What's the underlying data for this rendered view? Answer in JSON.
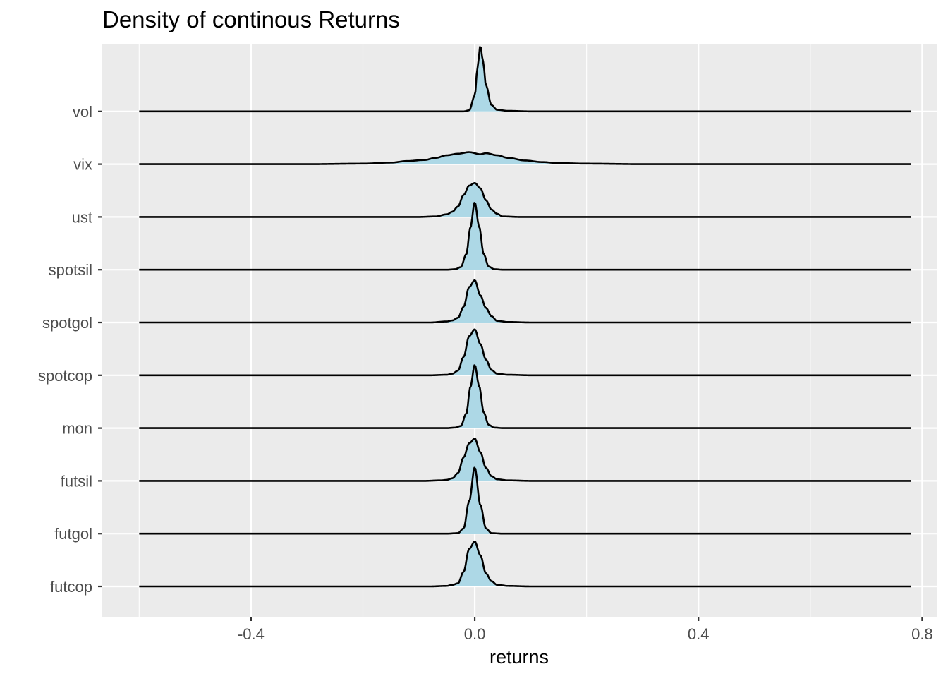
{
  "chart_data": {
    "type": "ridgeline-density",
    "title": "Density of continous Returns",
    "xlabel": "returns",
    "ylabel": "",
    "xlim": [
      -0.666,
      0.826
    ],
    "x_ticks": [
      -0.4,
      0.0,
      0.4,
      0.8
    ],
    "x_tick_labels": [
      "-0.4",
      "0.0",
      "0.4",
      "0.8"
    ],
    "x_range_of_curves": [
      -0.6,
      0.78
    ],
    "grid": true,
    "legend": "none",
    "fill_color": "#add8e6",
    "line_color": "#000000",
    "panel_color": "#ebebeb",
    "grid_color": "#ffffff",
    "categories": [
      "futcop",
      "futgol",
      "futsil",
      "mon",
      "spotcop",
      "spotgol",
      "spotsil",
      "ust",
      "vix",
      "vol"
    ],
    "series": [
      {
        "name": "futcop",
        "peak_x": 0.0,
        "peak_height": 0.86,
        "shape": [
          [
            -0.08,
            0.0
          ],
          [
            -0.05,
            0.01
          ],
          [
            -0.04,
            0.03
          ],
          [
            -0.03,
            0.06
          ],
          [
            -0.02,
            0.28
          ],
          [
            -0.01,
            0.72
          ],
          [
            0.0,
            0.86
          ],
          [
            0.01,
            0.6
          ],
          [
            0.02,
            0.25
          ],
          [
            0.03,
            0.1
          ],
          [
            0.04,
            0.03
          ],
          [
            0.06,
            0.01
          ],
          [
            0.1,
            0.0
          ]
        ]
      },
      {
        "name": "futgol",
        "peak_x": 0.0,
        "peak_height": 1.27,
        "shape": [
          [
            -0.05,
            0.0
          ],
          [
            -0.03,
            0.01
          ],
          [
            -0.02,
            0.1
          ],
          [
            -0.01,
            0.62
          ],
          [
            0.0,
            1.27
          ],
          [
            0.01,
            0.55
          ],
          [
            0.02,
            0.1
          ],
          [
            0.03,
            0.01
          ],
          [
            0.05,
            0.0
          ]
        ]
      },
      {
        "name": "futsil",
        "peak_x": 0.0,
        "peak_height": 0.81,
        "shape": [
          [
            -0.09,
            0.0
          ],
          [
            -0.06,
            0.01
          ],
          [
            -0.05,
            0.02
          ],
          [
            -0.04,
            0.05
          ],
          [
            -0.03,
            0.15
          ],
          [
            -0.02,
            0.45
          ],
          [
            -0.01,
            0.72
          ],
          [
            0.0,
            0.81
          ],
          [
            0.01,
            0.55
          ],
          [
            0.02,
            0.25
          ],
          [
            0.03,
            0.09
          ],
          [
            0.04,
            0.03
          ],
          [
            0.06,
            0.01
          ],
          [
            0.1,
            0.0
          ]
        ]
      },
      {
        "name": "mon",
        "peak_x": 0.0,
        "peak_height": 1.21,
        "shape": [
          [
            -0.05,
            0.0
          ],
          [
            -0.035,
            0.01
          ],
          [
            -0.025,
            0.04
          ],
          [
            -0.015,
            0.28
          ],
          [
            -0.008,
            0.78
          ],
          [
            0.0,
            1.21
          ],
          [
            0.008,
            0.8
          ],
          [
            0.016,
            0.3
          ],
          [
            0.025,
            0.06
          ],
          [
            0.035,
            0.01
          ],
          [
            0.05,
            0.0
          ]
        ]
      },
      {
        "name": "spotcop",
        "peak_x": 0.0,
        "peak_height": 0.88,
        "shape": [
          [
            -0.08,
            0.0
          ],
          [
            -0.05,
            0.01
          ],
          [
            -0.04,
            0.03
          ],
          [
            -0.03,
            0.09
          ],
          [
            -0.02,
            0.35
          ],
          [
            -0.01,
            0.75
          ],
          [
            0.0,
            0.88
          ],
          [
            0.01,
            0.6
          ],
          [
            0.02,
            0.3
          ],
          [
            0.03,
            0.1
          ],
          [
            0.04,
            0.03
          ],
          [
            0.06,
            0.01
          ],
          [
            0.1,
            0.0
          ]
        ]
      },
      {
        "name": "spotgol",
        "peak_x": 0.0,
        "peak_height": 0.81,
        "shape": [
          [
            -0.08,
            0.0
          ],
          [
            -0.05,
            0.02
          ],
          [
            -0.04,
            0.04
          ],
          [
            -0.03,
            0.09
          ],
          [
            -0.02,
            0.3
          ],
          [
            -0.01,
            0.68
          ],
          [
            0.0,
            0.81
          ],
          [
            0.01,
            0.52
          ],
          [
            0.02,
            0.28
          ],
          [
            0.03,
            0.12
          ],
          [
            0.04,
            0.03
          ],
          [
            0.06,
            0.01
          ],
          [
            0.1,
            0.0
          ]
        ]
      },
      {
        "name": "spotsil",
        "peak_x": 0.0,
        "peak_height": 1.29,
        "shape": [
          [
            -0.05,
            0.0
          ],
          [
            -0.035,
            0.01
          ],
          [
            -0.025,
            0.05
          ],
          [
            -0.015,
            0.3
          ],
          [
            -0.008,
            0.8
          ],
          [
            0.0,
            1.29
          ],
          [
            0.008,
            0.82
          ],
          [
            0.016,
            0.3
          ],
          [
            0.025,
            0.06
          ],
          [
            0.035,
            0.01
          ],
          [
            0.05,
            0.0
          ]
        ]
      },
      {
        "name": "ust",
        "peak_x": 0.0,
        "peak_height": 0.65,
        "shape": [
          [
            -0.1,
            0.0
          ],
          [
            -0.07,
            0.01
          ],
          [
            -0.05,
            0.05
          ],
          [
            -0.04,
            0.1
          ],
          [
            -0.03,
            0.2
          ],
          [
            -0.02,
            0.42
          ],
          [
            -0.01,
            0.6
          ],
          [
            0.0,
            0.65
          ],
          [
            0.01,
            0.55
          ],
          [
            0.02,
            0.32
          ],
          [
            0.03,
            0.14
          ],
          [
            0.04,
            0.06
          ],
          [
            0.05,
            0.01
          ],
          [
            0.08,
            0.0
          ]
        ]
      },
      {
        "name": "vix",
        "peak_x": -0.01,
        "peak_height": 0.23,
        "shape": [
          [
            -0.3,
            0.0
          ],
          [
            -0.2,
            0.01
          ],
          [
            -0.15,
            0.03
          ],
          [
            -0.12,
            0.06
          ],
          [
            -0.09,
            0.08
          ],
          [
            -0.07,
            0.12
          ],
          [
            -0.05,
            0.17
          ],
          [
            -0.03,
            0.2
          ],
          [
            -0.01,
            0.23
          ],
          [
            0.01,
            0.19
          ],
          [
            0.02,
            0.21
          ],
          [
            0.04,
            0.17
          ],
          [
            0.06,
            0.12
          ],
          [
            0.09,
            0.07
          ],
          [
            0.12,
            0.04
          ],
          [
            0.15,
            0.02
          ],
          [
            0.2,
            0.01
          ],
          [
            0.3,
            0.0
          ]
        ]
      },
      {
        "name": "vol",
        "peak_x": 0.01,
        "peak_height": 1.26,
        "shape": [
          [
            -0.02,
            0.0
          ],
          [
            -0.01,
            0.02
          ],
          [
            0.0,
            0.3
          ],
          [
            0.005,
            0.85
          ],
          [
            0.01,
            1.26
          ],
          [
            0.015,
            0.95
          ],
          [
            0.02,
            0.5
          ],
          [
            0.03,
            0.12
          ],
          [
            0.04,
            0.03
          ],
          [
            0.06,
            0.01
          ],
          [
            0.1,
            0.0
          ]
        ]
      }
    ]
  }
}
